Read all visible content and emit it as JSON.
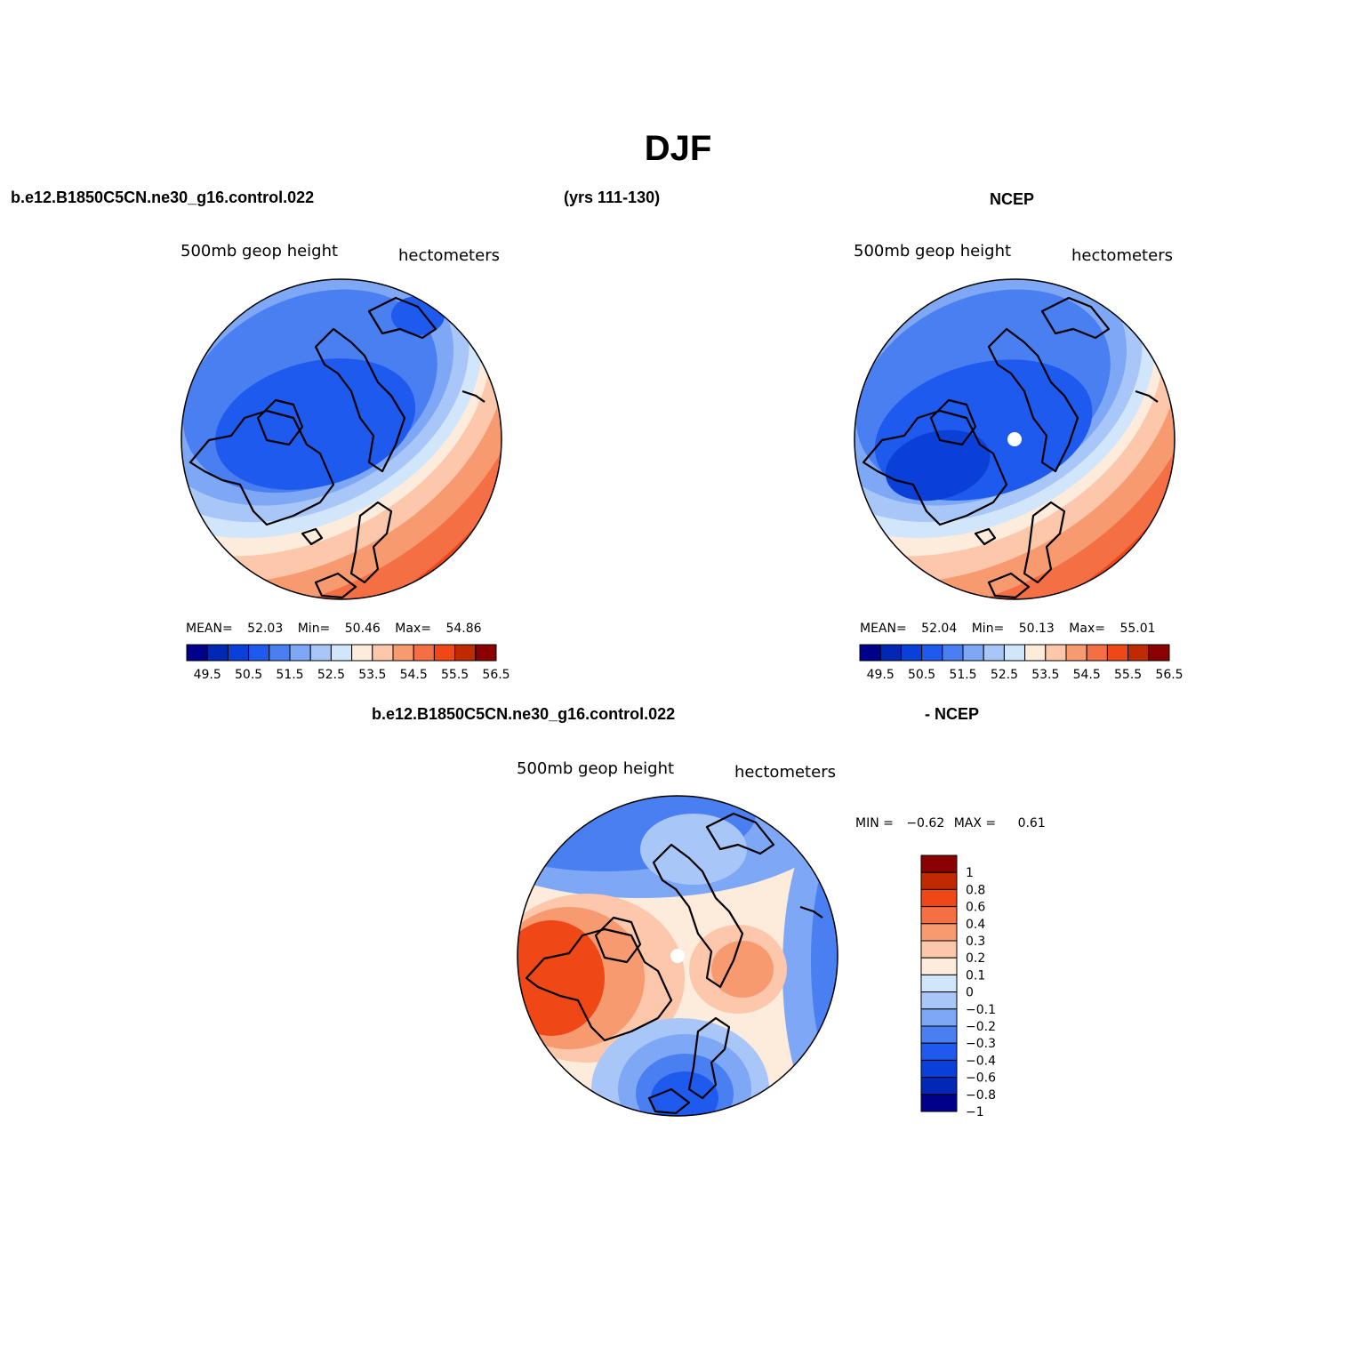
{
  "title": "DJF",
  "header": {
    "case_name": "b.e12.B1850C5CN.ne30_g16.control.022",
    "years": "(yrs 111-130)",
    "obs_name": "NCEP"
  },
  "diff_header": {
    "case_name": "b.e12.B1850C5CN.ne30_g16.control.022",
    "obs_name": "- NCEP"
  },
  "colors": {
    "abs_levels": [
      "#00008b",
      "#0028b4",
      "#0a40d8",
      "#1f5aef",
      "#4a7ff2",
      "#7ea7f5",
      "#a9c6f8",
      "#d2e6fb",
      "#fdebdc",
      "#fcc7aa",
      "#f89a70",
      "#f46f43",
      "#ef4715",
      "#c02a00",
      "#8b0000"
    ],
    "diff_levels": [
      "#00008b",
      "#0028b4",
      "#0a40d8",
      "#1f5aef",
      "#4a7ff2",
      "#7ea7f5",
      "#a9c6f8",
      "#d2e6fb",
      "#fdebdc",
      "#fcc7aa",
      "#f89a70",
      "#f46f43",
      "#ef4715",
      "#c02a00",
      "#8b0000"
    ]
  },
  "chart_data": [
    {
      "type": "heatmap",
      "projection": "north-polar-stereographic",
      "name": "model",
      "subtitle_left": "500mb geop height",
      "subtitle_right": "hectometers",
      "stats": {
        "mean_label": "MEAN=",
        "mean": "52.03",
        "min_label": "Min=",
        "min": "50.46",
        "max_label": "Max=",
        "max": "54.86"
      },
      "colorbar_ticks": [
        "49.5",
        "50.5",
        "51.5",
        "52.5",
        "53.5",
        "54.5",
        "55.5",
        "56.5"
      ],
      "mean": 52.03,
      "min": 50.46,
      "max": 54.86,
      "pole_marker": false
    },
    {
      "type": "heatmap",
      "projection": "north-polar-stereographic",
      "name": "obs",
      "subtitle_left": "500mb geop height",
      "subtitle_right": "hectometers",
      "stats": {
        "mean_label": "MEAN=",
        "mean": "52.04",
        "min_label": "Min=",
        "min": "50.13",
        "max_label": "Max=",
        "max": "55.01"
      },
      "colorbar_ticks": [
        "49.5",
        "50.5",
        "51.5",
        "52.5",
        "53.5",
        "54.5",
        "55.5",
        "56.5"
      ],
      "mean": 52.04,
      "min": 50.13,
      "max": 55.01,
      "pole_marker": true
    },
    {
      "type": "heatmap",
      "projection": "north-polar-stereographic",
      "name": "difference",
      "subtitle_left": "500mb geop height",
      "subtitle_right": "hectometers",
      "stats": {
        "min_label": "MIN =",
        "min": "−0.62",
        "max_label": "MAX =",
        "max": "0.61"
      },
      "colorbar_ticks": [
        "1",
        "0.8",
        "0.6",
        "0.4",
        "0.3",
        "0.2",
        "0.1",
        "0",
        "−0.1",
        "−0.2",
        "−0.3",
        "−0.4",
        "−0.6",
        "−0.8",
        "−1"
      ],
      "min": -0.62,
      "max": 0.61,
      "pole_marker": true
    }
  ]
}
